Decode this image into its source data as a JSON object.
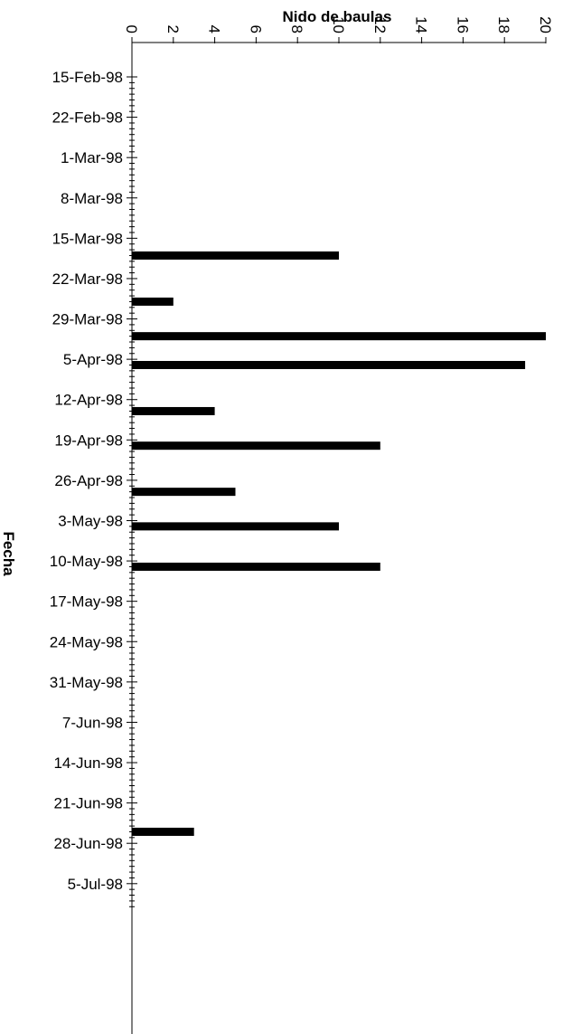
{
  "chart_data": {
    "type": "bar",
    "orientation": "horizontal",
    "title": "Nido de baulas",
    "xlabel": "Nido de baulas",
    "ylabel": "Fecha",
    "xlim": [
      0,
      20
    ],
    "x_ticks": [
      0,
      2,
      4,
      6,
      8,
      10,
      12,
      14,
      16,
      18,
      20
    ],
    "x_tick_labels": [
      "0",
      "2",
      "4",
      "6",
      "8",
      "10",
      "12",
      "14",
      "16",
      "18",
      "20"
    ],
    "date_range": [
      "1998-02-15",
      "1998-07-09"
    ],
    "category_labels": [
      {
        "date": "1998-02-15",
        "label": "15-Feb-98"
      },
      {
        "date": "1998-02-22",
        "label": "22-Feb-98"
      },
      {
        "date": "1998-03-01",
        "label": "1-Mar-98"
      },
      {
        "date": "1998-03-08",
        "label": "8-Mar-98"
      },
      {
        "date": "1998-03-15",
        "label": "15-Mar-98"
      },
      {
        "date": "1998-03-22",
        "label": "22-Mar-98"
      },
      {
        "date": "1998-03-29",
        "label": "29-Mar-98"
      },
      {
        "date": "1998-04-05",
        "label": "5-Apr-98"
      },
      {
        "date": "1998-04-12",
        "label": "12-Apr-98"
      },
      {
        "date": "1998-04-19",
        "label": "19-Apr-98"
      },
      {
        "date": "1998-04-26",
        "label": "26-Apr-98"
      },
      {
        "date": "1998-05-03",
        "label": "3-May-98"
      },
      {
        "date": "1998-05-10",
        "label": "10-May-98"
      },
      {
        "date": "1998-05-17",
        "label": "17-May-98"
      },
      {
        "date": "1998-05-24",
        "label": "24-May-98"
      },
      {
        "date": "1998-05-31",
        "label": "31-May-98"
      },
      {
        "date": "1998-06-07",
        "label": "7-Jun-98"
      },
      {
        "date": "1998-06-14",
        "label": "14-Jun-98"
      },
      {
        "date": "1998-06-21",
        "label": "21-Jun-98"
      },
      {
        "date": "1998-06-28",
        "label": "28-Jun-98"
      },
      {
        "date": "1998-07-05",
        "label": "5-Jul-98"
      }
    ],
    "bars": [
      {
        "date": "1998-03-18",
        "value": 10
      },
      {
        "date": "1998-03-26",
        "value": 2
      },
      {
        "date": "1998-04-01",
        "value": 20
      },
      {
        "date": "1998-04-06",
        "value": 19
      },
      {
        "date": "1998-04-14",
        "value": 4
      },
      {
        "date": "1998-04-20",
        "value": 12
      },
      {
        "date": "1998-04-28",
        "value": 5
      },
      {
        "date": "1998-05-04",
        "value": 10
      },
      {
        "date": "1998-05-11",
        "value": 12
      },
      {
        "date": "1998-06-26",
        "value": 3
      }
    ],
    "bar_color": "#000000",
    "grid": false,
    "legend": "none"
  }
}
